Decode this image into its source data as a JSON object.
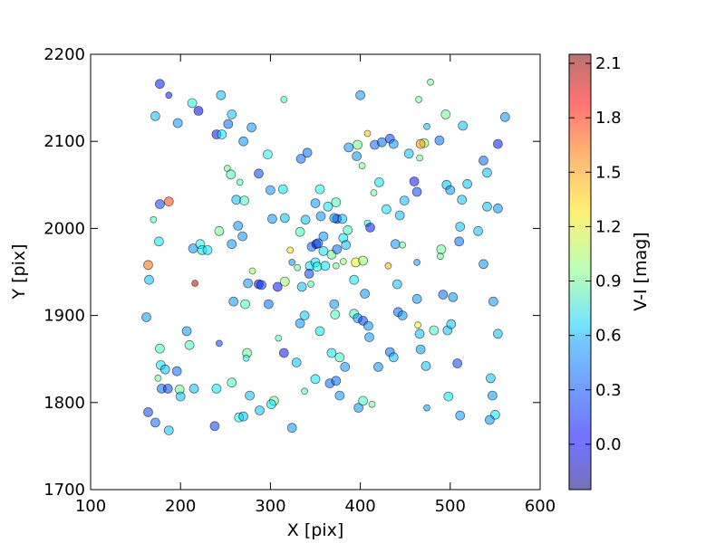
{
  "chart_data": {
    "type": "scatter",
    "xlabel": "X [pix]",
    "ylabel": "Y [pix]",
    "xlim": [
      100,
      600
    ],
    "ylim": [
      1700,
      2200
    ],
    "xticks": [
      "100",
      "200",
      "300",
      "400",
      "500",
      "600"
    ],
    "yticks": [
      "1700",
      "1800",
      "1900",
      "2000",
      "2100",
      "2200"
    ],
    "grid": false,
    "colorbar": {
      "label": "V-I [mag]",
      "range": [
        -0.25,
        2.15
      ],
      "colormap": "jet",
      "ticks": [
        "0.0",
        "0.3",
        "0.6",
        "0.9",
        "1.2",
        "1.5",
        "1.8",
        "2.1"
      ]
    },
    "points": [
      [
        177,
        2166,
        0.1,
        1
      ],
      [
        187,
        2153,
        0.1,
        0
      ],
      [
        172,
        2129,
        0.5,
        1
      ],
      [
        197,
        2121,
        0.4,
        1
      ],
      [
        213,
        2144,
        0.7,
        1
      ],
      [
        220,
        2135,
        0.0,
        1
      ],
      [
        245,
        2153,
        0.5,
        1
      ],
      [
        257,
        2131,
        0.5,
        1
      ],
      [
        253,
        2120,
        0.3,
        1
      ],
      [
        240,
        2108,
        0.1,
        1
      ],
      [
        246,
        2108,
        0.6,
        1
      ],
      [
        270,
        2100,
        0.4,
        1
      ],
      [
        279,
        2116,
        0.4,
        1
      ],
      [
        297,
        2085,
        0.7,
        1
      ],
      [
        315,
        2148,
        0.8,
        0
      ],
      [
        334,
        2080,
        0.3,
        1
      ],
      [
        341,
        2087,
        0.3,
        1
      ],
      [
        387,
        2093,
        0.4,
        1
      ],
      [
        396,
        2083,
        0.4,
        1
      ],
      [
        397,
        2096,
        0.9,
        1
      ],
      [
        400,
        2153,
        0.4,
        1
      ],
      [
        408,
        2109,
        1.4,
        0
      ],
      [
        402,
        2072,
        0.9,
        0
      ],
      [
        416,
        2096,
        0.3,
        1
      ],
      [
        424,
        2099,
        0.3,
        1
      ],
      [
        433,
        2103,
        0.2,
        1
      ],
      [
        437,
        2097,
        0.4,
        1
      ],
      [
        454,
        2086,
        0.5,
        1
      ],
      [
        465,
        2148,
        0.9,
        0
      ],
      [
        474,
        2117,
        0.5,
        0
      ],
      [
        478,
        2168,
        0.9,
        0
      ],
      [
        471,
        2098,
        1.0,
        1
      ],
      [
        467,
        2097,
        1.5,
        1
      ],
      [
        466,
        2081,
        0.9,
        0
      ],
      [
        488,
        2101,
        0.3,
        1
      ],
      [
        495,
        2131,
        0.9,
        1
      ],
      [
        514,
        2118,
        0.5,
        1
      ],
      [
        537,
        2078,
        0.3,
        1
      ],
      [
        541,
        2064,
        0.5,
        1
      ],
      [
        553,
        2097,
        0.1,
        1
      ],
      [
        561,
        2128,
        0.4,
        1
      ],
      [
        252,
        2069,
        0.9,
        0
      ],
      [
        256,
        2062,
        0.8,
        1
      ],
      [
        266,
        2053,
        0.8,
        0
      ],
      [
        287,
        2063,
        0.2,
        1
      ],
      [
        300,
        2044,
        0.4,
        1
      ],
      [
        314,
        2045,
        0.6,
        1
      ],
      [
        262,
        2033,
        0.5,
        1
      ],
      [
        271,
        2032,
        0.8,
        1
      ],
      [
        243,
        1997,
        0.9,
        1
      ],
      [
        264,
        2003,
        0.4,
        1
      ],
      [
        269,
        1991,
        0.4,
        1
      ],
      [
        257,
        1982,
        0.4,
        1
      ],
      [
        214,
        1977,
        0.4,
        1
      ],
      [
        222,
        1982,
        0.7,
        1
      ],
      [
        224,
        1975,
        0.6,
        1
      ],
      [
        230,
        1975,
        0.6,
        1
      ],
      [
        170,
        2010,
        0.8,
        0
      ],
      [
        177,
        2028,
        0.2,
        1
      ],
      [
        187,
        2031,
        1.7,
        1
      ],
      [
        176,
        1985,
        0.6,
        1
      ],
      [
        164,
        1958,
        1.6,
        1
      ],
      [
        165,
        1941,
        0.5,
        1
      ],
      [
        216,
        1937,
        2.0,
        0
      ],
      [
        302,
        2011,
        0.4,
        1
      ],
      [
        316,
        2012,
        0.5,
        1
      ],
      [
        333,
        1996,
        0.8,
        1
      ],
      [
        339,
        2010,
        0.5,
        1
      ],
      [
        350,
        2029,
        0.4,
        1
      ],
      [
        355,
        2045,
        0.7,
        1
      ],
      [
        364,
        2025,
        0.6,
        1
      ],
      [
        373,
        2030,
        0.8,
        1
      ],
      [
        374,
        2011,
        0.0,
        1
      ],
      [
        371,
        2012,
        0.4,
        1
      ],
      [
        380,
        2011,
        0.5,
        1
      ],
      [
        356,
        2014,
        0.4,
        1
      ],
      [
        359,
        1991,
        0.4,
        1
      ],
      [
        381,
        1989,
        0.6,
        1
      ],
      [
        386,
        1998,
        0.8,
        1
      ],
      [
        346,
        1979,
        0.3,
        1
      ],
      [
        351,
        1982,
        0.0,
        1
      ],
      [
        353,
        1983,
        0.3,
        1
      ],
      [
        359,
        1974,
        0.6,
        1
      ],
      [
        368,
        1970,
        0.9,
        1
      ],
      [
        374,
        1976,
        0.3,
        1
      ],
      [
        384,
        1981,
        0.5,
        1
      ],
      [
        322,
        1975,
        1.3,
        0
      ],
      [
        324,
        1961,
        0.4,
        0
      ],
      [
        330,
        1955,
        0.9,
        0
      ],
      [
        344,
        1957,
        0.6,
        1
      ],
      [
        350,
        1961,
        0.6,
        1
      ],
      [
        343,
        1948,
        0.2,
        1
      ],
      [
        352,
        1956,
        0.7,
        1
      ],
      [
        361,
        1957,
        0.6,
        1
      ],
      [
        373,
        1957,
        0.9,
        0
      ],
      [
        381,
        1962,
        1.0,
        0
      ],
      [
        395,
        1961,
        1.2,
        1
      ],
      [
        403,
        1963,
        1.0,
        1
      ],
      [
        408,
        2006,
        0.7,
        0
      ],
      [
        411,
        2001,
        0.1,
        1
      ],
      [
        415,
        2041,
        0.9,
        0
      ],
      [
        421,
        2053,
        0.6,
        1
      ],
      [
        429,
        2022,
        0.6,
        1
      ],
      [
        444,
        2015,
        0.5,
        1
      ],
      [
        449,
        2032,
        0.5,
        1
      ],
      [
        460,
        2054,
        0.1,
        1
      ],
      [
        463,
        2042,
        0.2,
        1
      ],
      [
        439,
        1982,
        0.4,
        1
      ],
      [
        447,
        1981,
        0.9,
        0
      ],
      [
        431,
        1957,
        1.4,
        0
      ],
      [
        463,
        1961,
        0.4,
        0
      ],
      [
        490,
        1976,
        0.9,
        1
      ],
      [
        489,
        1968,
        0.9,
        0
      ],
      [
        496,
        2050,
        0.5,
        1
      ],
      [
        500,
        2044,
        0.4,
        1
      ],
      [
        513,
        2033,
        0.5,
        1
      ],
      [
        519,
        2051,
        0.5,
        1
      ],
      [
        511,
        2002,
        0.5,
        1
      ],
      [
        510,
        1985,
        0.3,
        1
      ],
      [
        531,
        1997,
        0.5,
        1
      ],
      [
        541,
        2025,
        0.5,
        1
      ],
      [
        553,
        2023,
        0.4,
        1
      ],
      [
        537,
        1959,
        0.4,
        1
      ],
      [
        275,
        1937,
        0.4,
        1
      ],
      [
        280,
        1951,
        1.0,
        0
      ],
      [
        287,
        1936,
        0.0,
        1
      ],
      [
        290,
        1935,
        0.2,
        1
      ],
      [
        308,
        1933,
        0.1,
        1
      ],
      [
        316,
        1939,
        1.0,
        1
      ],
      [
        335,
        1933,
        0.5,
        1
      ],
      [
        345,
        1936,
        0.8,
        0
      ],
      [
        371,
        1913,
        0.4,
        1
      ],
      [
        372,
        1901,
        0.8,
        1
      ],
      [
        393,
        1941,
        0.6,
        1
      ],
      [
        405,
        1925,
        0.4,
        1
      ],
      [
        441,
        1936,
        0.5,
        1
      ],
      [
        463,
        1919,
        0.4,
        1
      ],
      [
        492,
        1924,
        0.3,
        1
      ],
      [
        503,
        1921,
        0.4,
        1
      ],
      [
        548,
        1916,
        0.4,
        1
      ],
      [
        259,
        1916,
        0.4,
        1
      ],
      [
        272,
        1913,
        0.8,
        1
      ],
      [
        298,
        1913,
        0.3,
        1
      ],
      [
        162,
        1898,
        0.4,
        1
      ],
      [
        207,
        1882,
        0.4,
        1
      ],
      [
        210,
        1866,
        0.8,
        1
      ],
      [
        243,
        1868,
        0.2,
        0
      ],
      [
        333,
        1891,
        0.4,
        1
      ],
      [
        338,
        1900,
        0.5,
        1
      ],
      [
        355,
        1882,
        0.6,
        1
      ],
      [
        393,
        1902,
        0.8,
        1
      ],
      [
        397,
        1897,
        0.4,
        1
      ],
      [
        403,
        1894,
        0.2,
        1
      ],
      [
        409,
        1888,
        0.4,
        1
      ],
      [
        410,
        1875,
        0.4,
        1
      ],
      [
        442,
        1904,
        0.3,
        1
      ],
      [
        447,
        1900,
        0.4,
        1
      ],
      [
        464,
        1889,
        1.2,
        0
      ],
      [
        466,
        1879,
        0.5,
        1
      ],
      [
        482,
        1883,
        0.8,
        1
      ],
      [
        497,
        1883,
        0.5,
        1
      ],
      [
        501,
        1890,
        0.5,
        1
      ],
      [
        553,
        1879,
        0.5,
        1
      ],
      [
        309,
        1874,
        0.8,
        0
      ],
      [
        315,
        1857,
        0.1,
        1
      ],
      [
        329,
        1846,
        0.5,
        1
      ],
      [
        368,
        1857,
        0.6,
        1
      ],
      [
        377,
        1852,
        0.8,
        1
      ],
      [
        383,
        1841,
        0.4,
        1
      ],
      [
        433,
        1858,
        0.3,
        1
      ],
      [
        437,
        1852,
        0.5,
        1
      ],
      [
        420,
        1841,
        0.4,
        1
      ],
      [
        467,
        1861,
        0.4,
        1
      ],
      [
        473,
        1842,
        0.5,
        1
      ],
      [
        508,
        1845,
        0.2,
        1
      ],
      [
        177,
        1862,
        0.8,
        1
      ],
      [
        178,
        1843,
        0.6,
        1
      ],
      [
        183,
        1838,
        0.5,
        1
      ],
      [
        196,
        1836,
        0.3,
        1
      ],
      [
        175,
        1828,
        0.9,
        0
      ],
      [
        179,
        1816,
        0.3,
        1
      ],
      [
        186,
        1816,
        0.2,
        1
      ],
      [
        199,
        1815,
        0.9,
        1
      ],
      [
        200,
        1807,
        0.5,
        1
      ],
      [
        215,
        1816,
        0.5,
        1
      ],
      [
        240,
        1816,
        0.6,
        1
      ],
      [
        257,
        1823,
        0.8,
        1
      ],
      [
        274,
        1857,
        0.9,
        1
      ],
      [
        273,
        1851,
        0.7,
        0
      ],
      [
        277,
        1808,
        0.5,
        1
      ],
      [
        288,
        1791,
        0.5,
        1
      ],
      [
        304,
        1802,
        0.9,
        1
      ],
      [
        301,
        1798,
        0.6,
        1
      ],
      [
        338,
        1813,
        0.8,
        0
      ],
      [
        350,
        1827,
        0.6,
        1
      ],
      [
        366,
        1822,
        0.3,
        1
      ],
      [
        373,
        1825,
        0.3,
        1
      ],
      [
        377,
        1808,
        0.4,
        1
      ],
      [
        398,
        1794,
        0.4,
        1
      ],
      [
        403,
        1802,
        0.8,
        1
      ],
      [
        413,
        1798,
        0.9,
        0
      ],
      [
        474,
        1794,
        0.4,
        0
      ],
      [
        498,
        1807,
        0.6,
        1
      ],
      [
        511,
        1785,
        0.4,
        1
      ],
      [
        545,
        1828,
        0.5,
        1
      ],
      [
        547,
        1808,
        0.4,
        1
      ],
      [
        550,
        1786,
        0.6,
        1
      ],
      [
        544,
        1780,
        0.4,
        1
      ],
      [
        164,
        1789,
        0.2,
        1
      ],
      [
        172,
        1777,
        0.3,
        1
      ],
      [
        187,
        1768,
        0.5,
        1
      ],
      [
        238,
        1773,
        0.2,
        1
      ],
      [
        265,
        1783,
        0.7,
        1
      ],
      [
        270,
        1784,
        0.5,
        1
      ],
      [
        324,
        1771,
        0.4,
        1
      ]
    ]
  }
}
